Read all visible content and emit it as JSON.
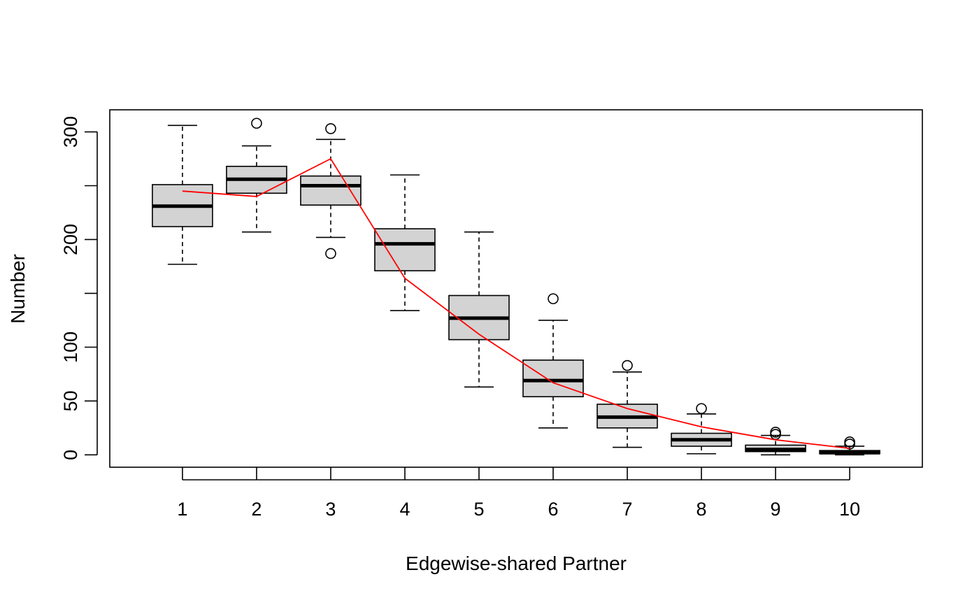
{
  "chart_data": {
    "type": "boxplot",
    "title": "",
    "xlabel": "Edgewise-shared Partner",
    "ylabel": "Number",
    "categories": [
      "1",
      "2",
      "3",
      "4",
      "5",
      "6",
      "7",
      "8",
      "9",
      "10"
    ],
    "y_ticks": [
      0,
      50,
      100,
      150,
      200,
      250,
      300
    ],
    "y_tick_labels": [
      "0",
      "50",
      "100",
      "",
      "200",
      "",
      "300"
    ],
    "ylim": [
      -11.5,
      320.5
    ],
    "xlim": [
      0.02,
      10.98
    ],
    "grid": false,
    "legend": "none",
    "boxes": [
      {
        "category": "1",
        "whisker_low": 177,
        "q1": 212,
        "median": 231,
        "q3": 251,
        "whisker_high": 306,
        "outliers": []
      },
      {
        "category": "2",
        "whisker_low": 207,
        "q1": 243,
        "median": 256,
        "q3": 268,
        "whisker_high": 287,
        "outliers": [
          308
        ]
      },
      {
        "category": "3",
        "whisker_low": 202,
        "q1": 232,
        "median": 250,
        "q3": 259,
        "whisker_high": 293,
        "outliers": [
          187,
          303
        ]
      },
      {
        "category": "4",
        "whisker_low": 134,
        "q1": 171,
        "median": 196,
        "q3": 210,
        "whisker_high": 260,
        "outliers": []
      },
      {
        "category": "5",
        "whisker_low": 63,
        "q1": 107,
        "median": 127,
        "q3": 148,
        "whisker_high": 207,
        "outliers": []
      },
      {
        "category": "6",
        "whisker_low": 25,
        "q1": 54,
        "median": 69,
        "q3": 88,
        "whisker_high": 125,
        "outliers": [
          145
        ]
      },
      {
        "category": "7",
        "whisker_low": 7,
        "q1": 25,
        "median": 35,
        "q3": 47,
        "whisker_high": 77,
        "outliers": [
          83
        ]
      },
      {
        "category": "8",
        "whisker_low": 1,
        "q1": 8,
        "median": 14,
        "q3": 20,
        "whisker_high": 38,
        "outliers": [
          43
        ]
      },
      {
        "category": "9",
        "whisker_low": 0,
        "q1": 3,
        "median": 5,
        "q3": 9,
        "whisker_high": 18,
        "outliers": [
          19,
          21
        ]
      },
      {
        "category": "10",
        "whisker_low": 0,
        "q1": 1,
        "median": 2,
        "q3": 4,
        "whisker_high": 8,
        "outliers": [
          10,
          12
        ]
      }
    ],
    "box_fill": "#d3d3d3",
    "series": [
      {
        "type": "line",
        "color": "#ff0000",
        "x": [
          1,
          2,
          3,
          4,
          5,
          6,
          7,
          8,
          9,
          10
        ],
        "values": [
          245,
          240,
          275,
          164,
          112,
          67,
          43,
          26,
          14,
          6
        ]
      }
    ]
  }
}
